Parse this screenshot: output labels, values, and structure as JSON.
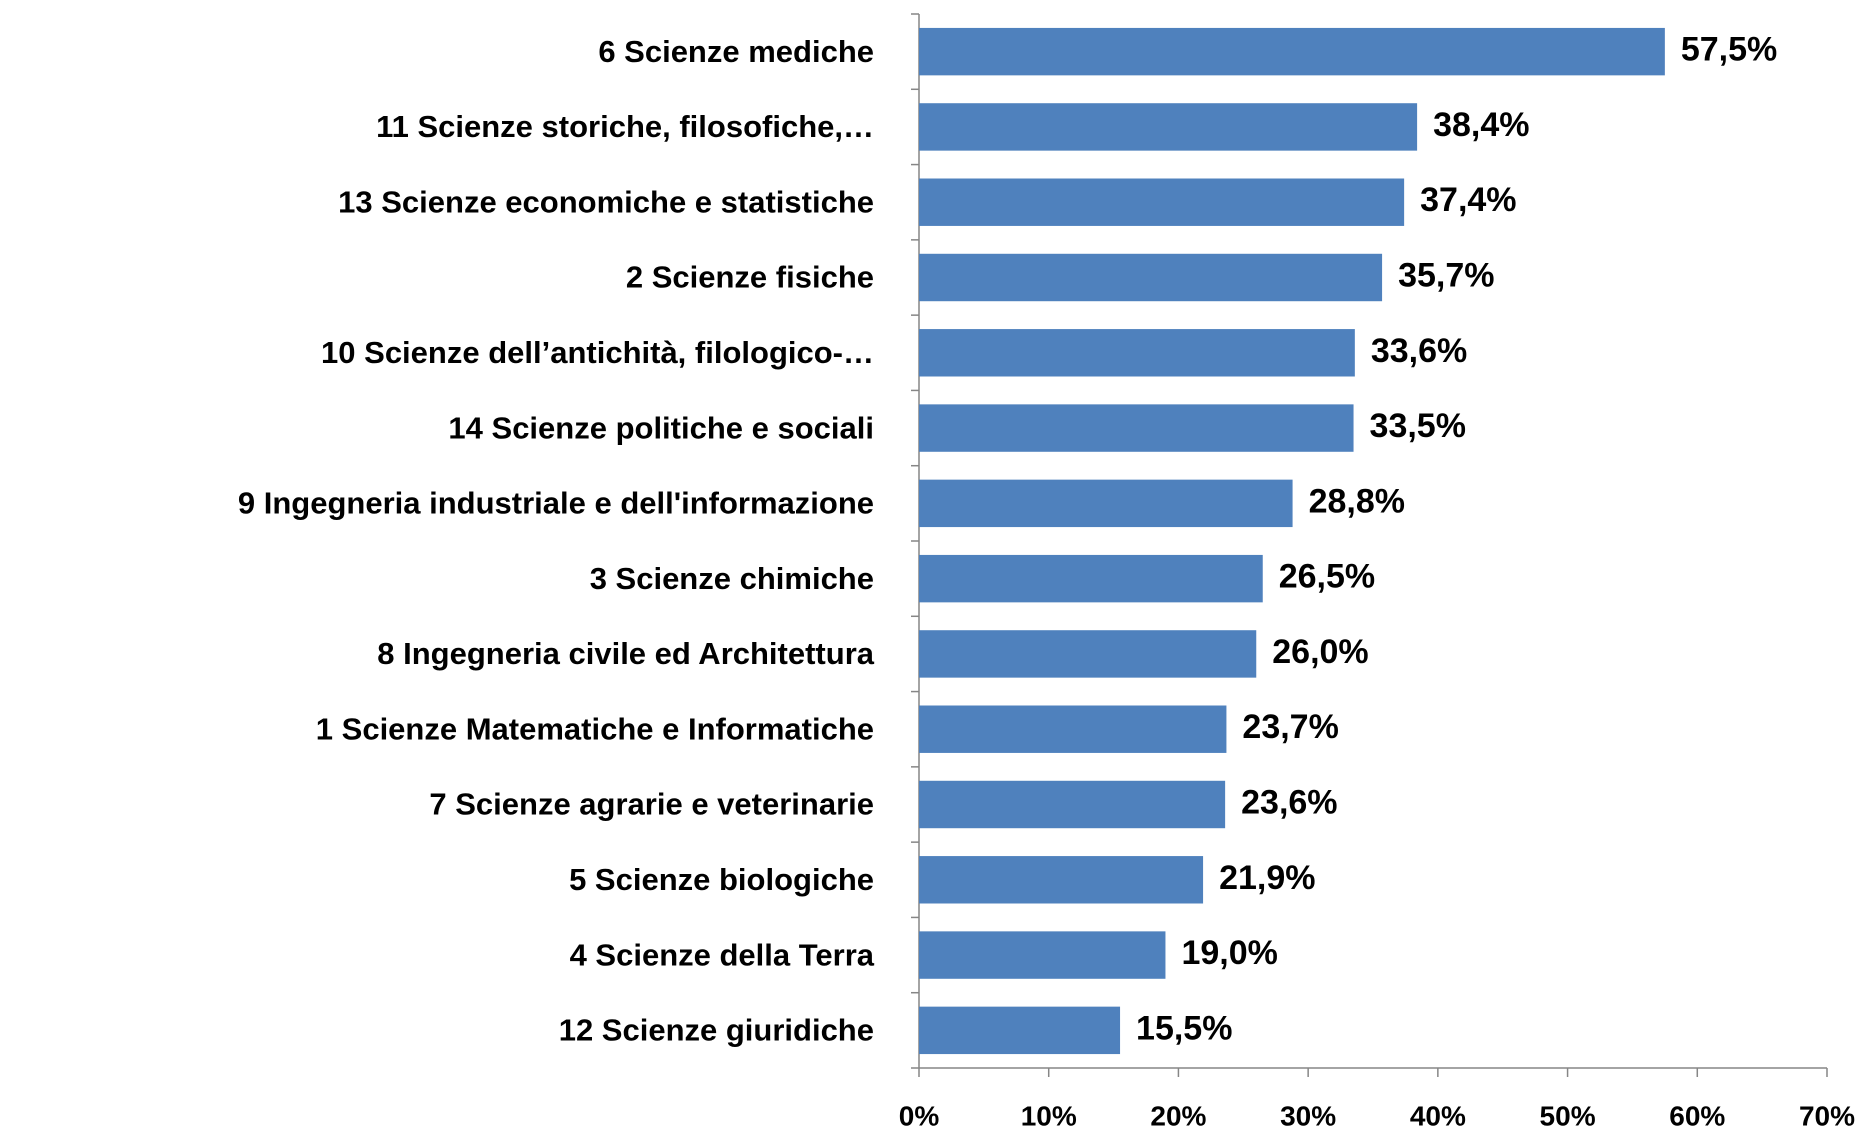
{
  "chart_data": {
    "type": "bar",
    "orientation": "horizontal",
    "categories": [
      "6 Scienze mediche",
      "11 Scienze storiche, filosofiche,…",
      "13 Scienze economiche e statistiche",
      "2 Scienze fisiche",
      "10 Scienze dell’antichità, filologico-…",
      "14 Scienze politiche e sociali",
      "9 Ingegneria industriale e dell'informazione",
      "3 Scienze chimiche",
      "8 Ingegneria civile ed Architettura",
      "1 Scienze Matematiche e Informatiche",
      "7 Scienze agrarie e veterinarie",
      "5 Scienze biologiche",
      "4 Scienze della Terra",
      "12 Scienze giuridiche"
    ],
    "values": [
      57.5,
      38.4,
      37.4,
      35.7,
      33.6,
      33.5,
      28.8,
      26.5,
      26.0,
      23.7,
      23.6,
      21.9,
      19.0,
      15.5
    ],
    "value_labels": [
      "57,5%",
      "38,4%",
      "37,4%",
      "35,7%",
      "33,6%",
      "33,5%",
      "28,8%",
      "26,5%",
      "26,0%",
      "23,7%",
      "23,6%",
      "21,9%",
      "19,0%",
      "15,5%"
    ],
    "color": "#4f81bd",
    "xlim": [
      0,
      70
    ],
    "xticks": [
      {
        "value": 0,
        "label": "0%"
      },
      {
        "value": 10,
        "label": "10%"
      },
      {
        "value": 20,
        "label": "20%"
      },
      {
        "value": 30,
        "label": "30%"
      },
      {
        "value": 40,
        "label": "40%"
      },
      {
        "value": 50,
        "label": "50%"
      },
      {
        "value": 60,
        "label": "60%"
      },
      {
        "value": 70,
        "label": "70%"
      }
    ],
    "grid": false
  }
}
